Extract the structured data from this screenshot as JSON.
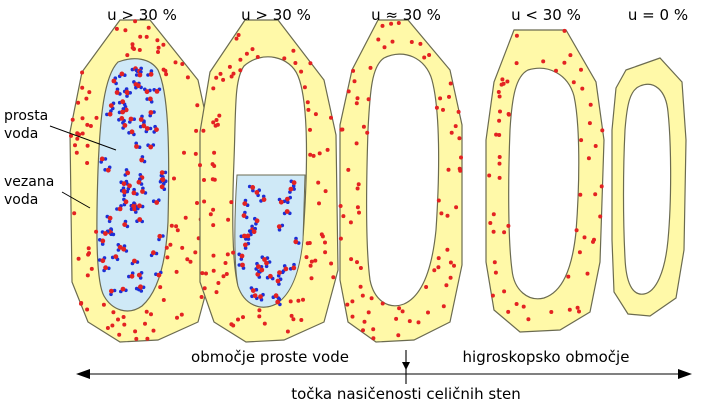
{
  "diagram": {
    "cells": [
      {
        "label": "u > 30 %"
      },
      {
        "label": "u > 30 %"
      },
      {
        "label": "u ≈ 30 %"
      },
      {
        "label": "u < 30 %"
      },
      {
        "label": "u = 0 %"
      }
    ],
    "side_labels": {
      "free_water_line1": "prosta",
      "free_water_line2": "voda",
      "bound_water_line1": "vezana",
      "bound_water_line2": "voda"
    },
    "axis": {
      "left_region": "območje proste vode",
      "right_region": "higroskopsko območje",
      "fsp_label": "točka nasičenosti celičnih sten"
    },
    "colors": {
      "cell_wall": "#fff9a8",
      "outline": "#6b6b50",
      "water": "#cfe9f7",
      "dot_red": "#e32222",
      "dot_blue": "#1c2fd6"
    }
  }
}
